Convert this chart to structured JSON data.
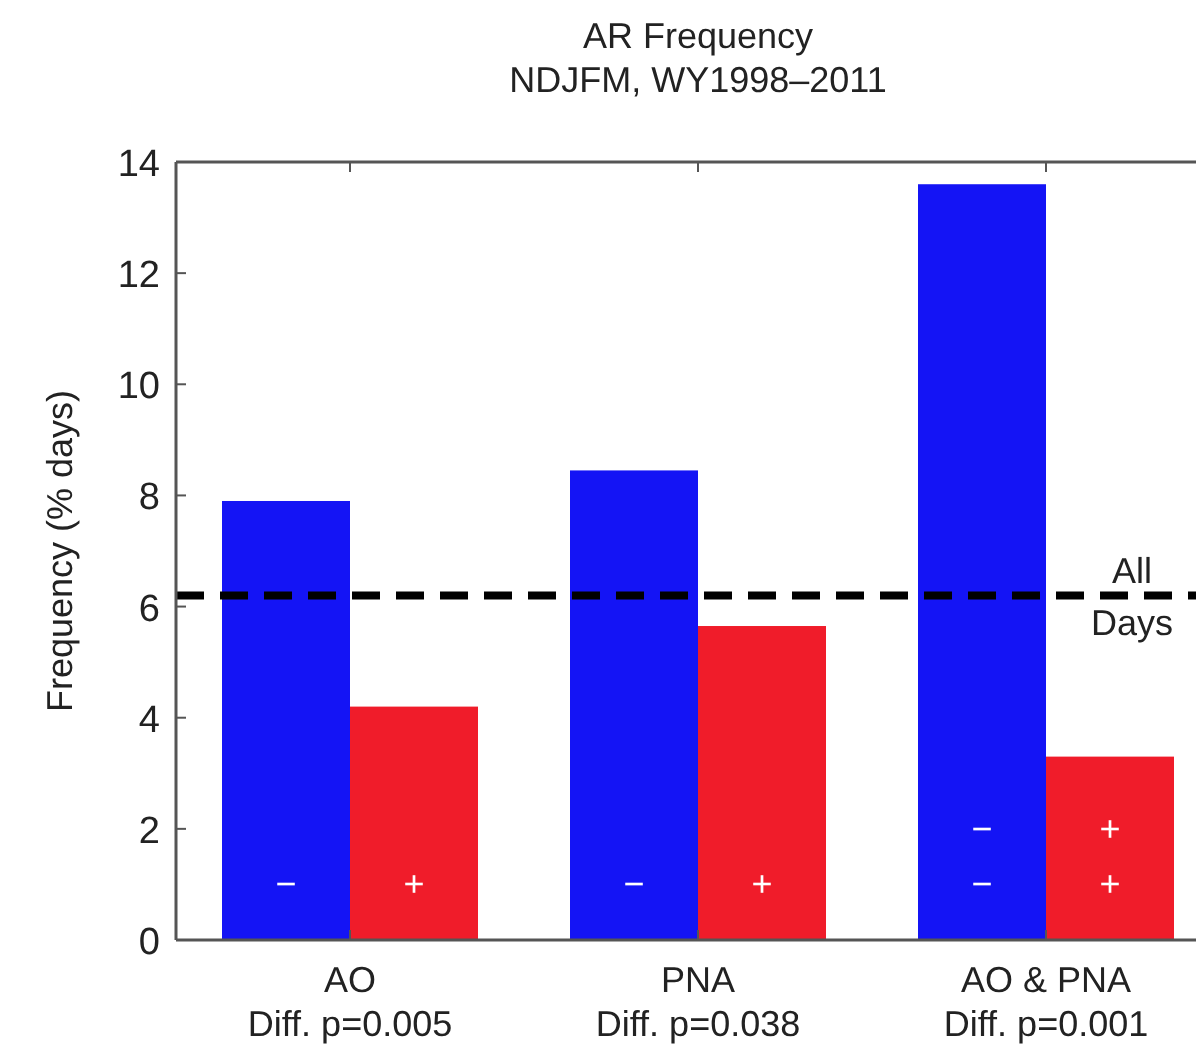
{
  "chart_data": {
    "type": "bar",
    "title": "AR Frequency\nNDJFM, WY1998–2011",
    "ylabel": "Frequency (% days)",
    "categories": [
      "AO\nDiff. p=0.005",
      "PNA\nDiff. p=0.038",
      "AO & PNA\nDiff. p=0.001"
    ],
    "series": [
      {
        "color": "#1414f5",
        "values": [
          7.9,
          8.45,
          13.6
        ]
      },
      {
        "color": "#f01c2a",
        "values": [
          4.2,
          5.65,
          3.3
        ]
      }
    ],
    "ylim": [
      0,
      14
    ],
    "yticks": [
      0,
      2,
      4,
      6,
      8,
      10,
      12,
      14
    ],
    "grid": false,
    "ref_lines": [
      {
        "axis": "y",
        "value": 6.2,
        "label": "All\nDays",
        "color": "#000000",
        "line_style": "dashed"
      }
    ],
    "annotations": [
      {
        "text": "−",
        "x": "AO\nDiff. p=0.005",
        "y": 1
      },
      {
        "text": "+",
        "x": "AO\nDiff. p=0.005",
        "y": 1
      },
      {
        "text": "−",
        "x": "PNA\nDiff. p=0.038",
        "y": 1
      },
      {
        "text": "+",
        "x": "PNA\nDiff. p=0.038",
        "y": 1
      },
      {
        "text": "−",
        "x": "AO & PNA\nDiff. p=0.001",
        "y": 2
      },
      {
        "text": "+",
        "x": "AO & PNA\nDiff. p=0.001",
        "y": 2
      },
      {
        "text": "−",
        "x": "AO & PNA\nDiff. p=0.001",
        "y": 1
      },
      {
        "text": "+",
        "x": "AO & PNA\nDiff. p=0.001",
        "y": 1
      }
    ]
  }
}
